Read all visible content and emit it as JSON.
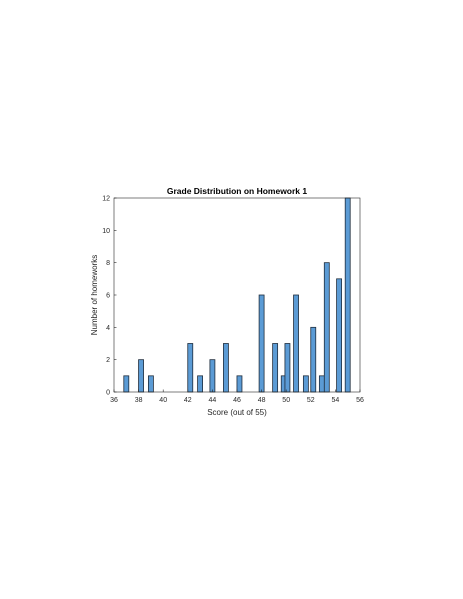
{
  "chart_data": {
    "type": "bar",
    "title": "Grade Distribution on Homework 1",
    "xlabel": "Score (out of 55)",
    "ylabel": "Number of homeworks",
    "xlim": [
      36,
      56
    ],
    "ylim": [
      0,
      12
    ],
    "xticks": [
      "36",
      "38",
      "40",
      "42",
      "44",
      "46",
      "48",
      "50",
      "52",
      "54",
      "56"
    ],
    "yticks": [
      "0",
      "2",
      "4",
      "6",
      "8",
      "10",
      "12"
    ],
    "grid": false,
    "bar_color": "#5b9bd5",
    "edge_color": "#1f2d3d",
    "x": [
      37,
      38.2,
      39,
      40,
      42.2,
      43,
      44,
      45.1,
      46.2,
      48,
      49.1,
      49.8,
      50.1,
      50.8,
      51.6,
      52.2,
      52.9,
      53.3,
      54.3,
      55
    ],
    "values": [
      1,
      2,
      1,
      0,
      3,
      1,
      2,
      3,
      1,
      6,
      3,
      1,
      3,
      6,
      1,
      4,
      1,
      8,
      7,
      12
    ]
  }
}
